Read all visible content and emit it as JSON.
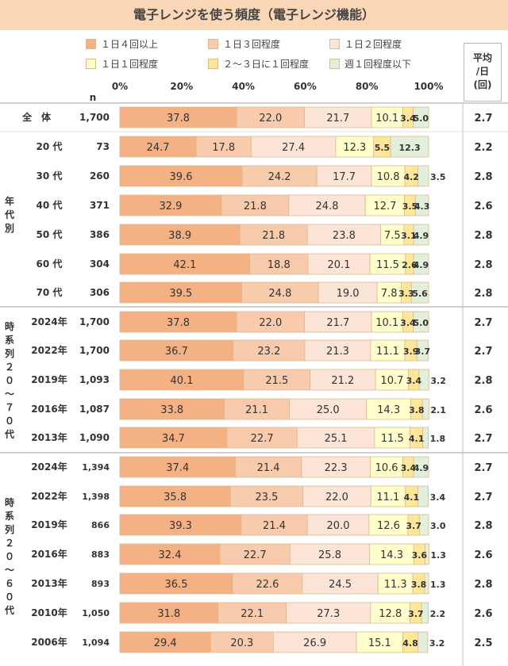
{
  "title": "電子レンジを使う頻度（電子レンジ機能）",
  "n_label": "n",
  "avg_header": [
    "平均",
    "/日",
    "(回)"
  ],
  "group_labels": {
    "age": [
      "年",
      "代",
      "別"
    ],
    "ts1": [
      "時",
      "系",
      "列",
      "２",
      "０",
      "〜",
      "７",
      "０",
      "代"
    ],
    "ts2": [
      "時",
      "系",
      "列",
      "２",
      "０",
      "〜",
      "６",
      "０",
      "代"
    ]
  },
  "colors": [
    "#f4b183",
    "#f8cbad",
    "#fce4d6",
    "#ffffcc",
    "#ffe699",
    "#e2efda"
  ],
  "chart_data": {
    "type": "bar",
    "orientation": "horizontal",
    "stacked": true,
    "xlim": [
      0,
      100
    ],
    "x_ticks": [
      "0%",
      "20%",
      "40%",
      "60%",
      "80%",
      "100%"
    ],
    "legend": [
      "１日４回以上",
      "１日３回程度",
      "１日２回程度",
      "１日１回程度",
      "２〜３日に１回程度",
      "週１回程度以下"
    ],
    "rows": [
      {
        "label": "全　体",
        "n": "1,700",
        "values": [
          37.8,
          22.0,
          21.7,
          10.1,
          3.4,
          5.0
        ],
        "labels": [
          "37.8",
          "22.0",
          "21.7",
          "10.1",
          "3.4",
          "5.0"
        ],
        "avg": "2.7"
      },
      {
        "label": "20 代",
        "n": "73",
        "values": [
          24.7,
          17.8,
          27.4,
          12.3,
          5.5,
          12.3
        ],
        "labels": [
          "24.7",
          "17.8",
          "27.4",
          "12.3",
          "5.5",
          "12.3"
        ],
        "avg": "2.2"
      },
      {
        "label": "30 代",
        "n": "260",
        "values": [
          39.6,
          24.2,
          17.7,
          10.8,
          4.2,
          3.5
        ],
        "labels": [
          "39.6",
          "24.2",
          "17.7",
          "10.8",
          "4.2",
          "3.5"
        ],
        "avg": "2.8"
      },
      {
        "label": "40 代",
        "n": "371",
        "values": [
          32.9,
          21.8,
          24.8,
          12.7,
          3.5,
          4.3
        ],
        "labels": [
          "32.9",
          "21.8",
          "24.8",
          "12.7",
          "3.5",
          "4.3"
        ],
        "avg": "2.6"
      },
      {
        "label": "50 代",
        "n": "386",
        "values": [
          38.9,
          21.8,
          23.8,
          7.5,
          3.1,
          4.9
        ],
        "labels": [
          "38.9",
          "21.8",
          "23.8",
          "7.5",
          "3.1",
          "4.9"
        ],
        "avg": "2.8"
      },
      {
        "label": "60 代",
        "n": "304",
        "values": [
          42.1,
          18.8,
          20.1,
          11.5,
          2.6,
          4.9
        ],
        "labels": [
          "42.1",
          "18.8",
          "20.1",
          "11.5",
          "2.6",
          "4.9"
        ],
        "avg": "2.8"
      },
      {
        "label": "70 代",
        "n": "306",
        "values": [
          39.5,
          24.8,
          19.0,
          7.8,
          3.3,
          5.6
        ],
        "labels": [
          "39.5",
          "24.8",
          "19.0",
          "7.8",
          "3.3",
          "5.6"
        ],
        "avg": "2.8"
      },
      {
        "label": "2024年",
        "n": "1,700",
        "values": [
          37.8,
          22.0,
          21.7,
          10.1,
          3.4,
          5.0
        ],
        "labels": [
          "37.8",
          "22.0",
          "21.7",
          "10.1",
          "3.4",
          "5.0"
        ],
        "avg": "2.7"
      },
      {
        "label": "2022年",
        "n": "1,700",
        "values": [
          36.7,
          23.2,
          21.3,
          11.1,
          3.9,
          3.7
        ],
        "labels": [
          "36.7",
          "23.2",
          "21.3",
          "11.1",
          "3.9",
          "3.7"
        ],
        "avg": "2.7"
      },
      {
        "label": "2019年",
        "n": "1,093",
        "values": [
          40.1,
          21.5,
          21.2,
          10.7,
          3.4,
          3.2
        ],
        "labels": [
          "40.1",
          "21.5",
          "21.2",
          "10.7",
          "3.4",
          "3.2"
        ],
        "avg": "2.8"
      },
      {
        "label": "2016年",
        "n": "1,087",
        "values": [
          33.8,
          21.1,
          25.0,
          14.3,
          3.8,
          2.1
        ],
        "labels": [
          "33.8",
          "21.1",
          "25.0",
          "14.3",
          "3.8",
          "2.1"
        ],
        "avg": "2.6"
      },
      {
        "label": "2013年",
        "n": "1,090",
        "values": [
          34.7,
          22.7,
          25.1,
          11.5,
          4.1,
          1.8
        ],
        "labels": [
          "34.7",
          "22.7",
          "25.1",
          "11.5",
          "4.1",
          "1.8"
        ],
        "avg": "2.7"
      },
      {
        "label": "2024年",
        "n": "1,394",
        "values": [
          37.4,
          21.4,
          22.3,
          10.6,
          3.4,
          4.9
        ],
        "labels": [
          "37.4",
          "21.4",
          "22.3",
          "10.6",
          "3.4",
          "4.9"
        ],
        "avg": "2.7"
      },
      {
        "label": "2022年",
        "n": "1,398",
        "values": [
          35.8,
          23.5,
          22.0,
          11.1,
          4.1,
          3.4
        ],
        "labels": [
          "35.8",
          "23.5",
          "22.0",
          "11.1",
          "4.1",
          "3.4"
        ],
        "avg": "2.7"
      },
      {
        "label": "2019年",
        "n": "866",
        "values": [
          39.3,
          21.4,
          20.0,
          12.6,
          3.7,
          3.0
        ],
        "labels": [
          "39.3",
          "21.4",
          "20.0",
          "12.6",
          "3.7",
          "3.0"
        ],
        "avg": "2.8"
      },
      {
        "label": "2016年",
        "n": "883",
        "values": [
          32.4,
          22.7,
          25.8,
          14.3,
          3.6,
          1.3
        ],
        "labels": [
          "32.4",
          "22.7",
          "25.8",
          "14.3",
          "3.6",
          "1.3"
        ],
        "avg": "2.6"
      },
      {
        "label": "2013年",
        "n": "893",
        "values": [
          36.5,
          22.6,
          24.5,
          11.3,
          3.8,
          1.3
        ],
        "labels": [
          "36.5",
          "22.6",
          "24.5",
          "11.3",
          "3.8",
          "1.3"
        ],
        "avg": "2.8"
      },
      {
        "label": "2010年",
        "n": "1,050",
        "values": [
          31.8,
          22.1,
          27.3,
          12.8,
          3.7,
          2.2
        ],
        "labels": [
          "31.8",
          "22.1",
          "27.3",
          "12.8",
          "3.7",
          "2.2"
        ],
        "avg": "2.6"
      },
      {
        "label": "2006年",
        "n": "1,094",
        "values": [
          29.4,
          20.3,
          26.9,
          15.1,
          4.8,
          3.2
        ],
        "labels": [
          "29.4",
          "20.3",
          "26.9",
          "15.1",
          "4.8",
          "3.2"
        ],
        "avg": "2.5"
      }
    ]
  }
}
